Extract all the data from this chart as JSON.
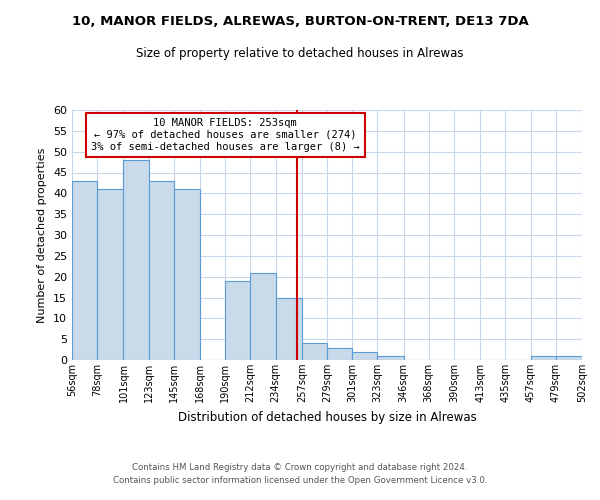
{
  "title": "10, MANOR FIELDS, ALREWAS, BURTON-ON-TRENT, DE13 7DA",
  "subtitle": "Size of property relative to detached houses in Alrewas",
  "xlabel": "Distribution of detached houses by size in Alrewas",
  "ylabel": "Number of detached properties",
  "bar_edges": [
    56,
    78,
    101,
    123,
    145,
    168,
    190,
    212,
    234,
    257,
    279,
    301,
    323,
    346,
    368,
    390,
    413,
    435,
    457,
    479,
    502
  ],
  "bar_heights": [
    43,
    41,
    48,
    43,
    41,
    0,
    19,
    21,
    15,
    4,
    3,
    2,
    1,
    0,
    0,
    0,
    0,
    0,
    1,
    1,
    0
  ],
  "tick_labels": [
    "56sqm",
    "78sqm",
    "101sqm",
    "123sqm",
    "145sqm",
    "168sqm",
    "190sqm",
    "212sqm",
    "234sqm",
    "257sqm",
    "279sqm",
    "301sqm",
    "323sqm",
    "346sqm",
    "368sqm",
    "390sqm",
    "413sqm",
    "435sqm",
    "457sqm",
    "479sqm",
    "502sqm"
  ],
  "bar_color": "#c9daea",
  "bar_edge_color": "#5b9bd5",
  "vline_x": 253,
  "vline_color": "#cc0000",
  "annotation_title": "10 MANOR FIELDS: 253sqm",
  "annotation_line1": "← 97% of detached houses are smaller (274)",
  "annotation_line2": "3% of semi-detached houses are larger (8) →",
  "annotation_box_edge": "#cc0000",
  "ylim": [
    0,
    60
  ],
  "yticks": [
    0,
    5,
    10,
    15,
    20,
    25,
    30,
    35,
    40,
    45,
    50,
    55,
    60
  ],
  "footnote1": "Contains HM Land Registry data © Crown copyright and database right 2024.",
  "footnote2": "Contains public sector information licensed under the Open Government Licence v3.0.",
  "background_color": "#ffffff",
  "grid_color": "#c8d8e8"
}
